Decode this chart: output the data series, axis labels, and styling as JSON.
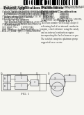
{
  "bg_color": "#f5f5f0",
  "barcode_color": "#111111",
  "text_color": "#333333",
  "line_color": "#555555",
  "component_color": "#888888"
}
